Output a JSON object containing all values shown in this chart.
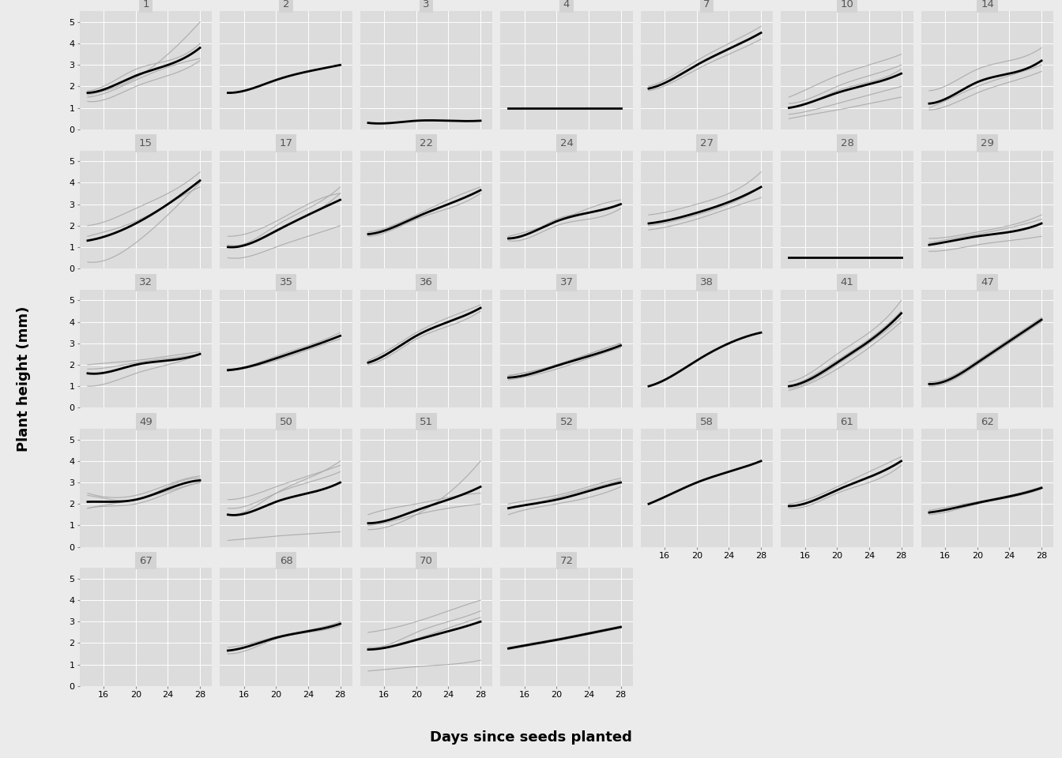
{
  "pots": [
    1,
    2,
    3,
    4,
    7,
    10,
    14,
    15,
    17,
    22,
    24,
    27,
    28,
    29,
    32,
    35,
    36,
    37,
    38,
    41,
    47,
    49,
    50,
    51,
    52,
    58,
    61,
    62,
    67,
    68,
    70,
    72
  ],
  "nrows": 5,
  "ncols": 7,
  "days": [
    14,
    17,
    20,
    24,
    28
  ],
  "x_ticks": [
    16,
    20,
    24,
    28
  ],
  "ylim": [
    0,
    5.5
  ],
  "yticks": [
    0,
    1,
    2,
    3,
    4,
    5
  ],
  "xlim": [
    13,
    29.5
  ],
  "background_color": "#EBEBEB",
  "panel_bg": "#DCDCDC",
  "strip_bg": "#D3D3D3",
  "grid_color": "#FFFFFF",
  "loess_color": "black",
  "line_color": "#AAAAAA",
  "strip_text_color": "#555555",
  "xlabel": "Days since seeds planted",
  "ylabel": "Plant height (mm)",
  "pot_data": {
    "1": {
      "plants": [
        [
          1.8,
          2.2,
          2.8,
          3.2,
          4.0
        ],
        [
          1.5,
          1.8,
          2.3,
          2.9,
          3.3
        ],
        [
          1.7,
          2.0,
          2.5,
          3.0,
          3.8
        ],
        [
          1.6,
          1.9,
          2.4,
          3.5,
          5.0
        ],
        [
          1.3,
          1.5,
          2.0,
          2.5,
          3.2
        ]
      ],
      "loess": [
        1.7,
        2.0,
        2.5,
        3.0,
        3.8
      ]
    },
    "2": {
      "plants": [
        [
          1.7,
          1.9,
          2.3,
          2.7,
          3.0
        ]
      ],
      "loess": [
        1.7,
        1.9,
        2.3,
        2.7,
        3.0
      ]
    },
    "3": {
      "plants": [
        [
          0.3,
          0.3,
          0.4,
          0.4,
          0.4
        ]
      ],
      "loess": [
        0.3,
        0.3,
        0.4,
        0.4,
        0.4
      ]
    },
    "4": {
      "plants": [
        [
          1.0,
          1.0,
          1.0,
          1.0,
          1.0
        ]
      ],
      "loess": [
        1.0,
        1.0,
        1.0,
        1.0,
        1.0
      ]
    },
    "7": {
      "plants": [
        [
          2.0,
          2.5,
          3.2,
          4.0,
          4.8
        ],
        [
          1.8,
          2.2,
          2.8,
          3.5,
          4.2
        ]
      ],
      "loess": [
        1.9,
        2.35,
        3.0,
        3.75,
        4.5
      ]
    },
    "10": {
      "plants": [
        [
          1.5,
          2.0,
          2.5,
          3.0,
          3.5
        ],
        [
          1.2,
          1.5,
          2.0,
          2.5,
          3.0
        ],
        [
          1.0,
          1.3,
          1.8,
          2.2,
          2.8
        ],
        [
          0.7,
          0.9,
          1.2,
          1.6,
          2.0
        ],
        [
          0.5,
          0.7,
          0.9,
          1.2,
          1.5
        ]
      ],
      "loess": [
        1.0,
        1.3,
        1.7,
        2.1,
        2.6
      ]
    },
    "14": {
      "plants": [
        [
          1.0,
          1.5,
          2.0,
          2.5,
          3.0
        ],
        [
          0.9,
          1.2,
          1.7,
          2.2,
          2.7
        ],
        [
          1.8,
          2.2,
          2.8,
          3.2,
          3.8
        ]
      ],
      "loess": [
        1.2,
        1.6,
        2.2,
        2.6,
        3.2
      ]
    },
    "15": {
      "plants": [
        [
          0.3,
          0.5,
          1.2,
          2.5,
          4.0
        ],
        [
          1.5,
          1.8,
          2.2,
          3.0,
          3.8
        ],
        [
          2.0,
          2.3,
          2.8,
          3.5,
          4.5
        ]
      ],
      "loess": [
        1.3,
        1.6,
        2.1,
        3.0,
        4.1
      ]
    },
    "17": {
      "plants": [
        [
          1.0,
          1.2,
          1.8,
          2.5,
          3.5
        ],
        [
          1.1,
          1.3,
          2.0,
          2.8,
          3.8
        ],
        [
          1.5,
          1.7,
          2.2,
          3.0,
          3.5
        ],
        [
          0.5,
          0.6,
          1.0,
          1.5,
          2.0
        ]
      ],
      "loess": [
        1.0,
        1.2,
        1.75,
        2.5,
        3.2
      ]
    },
    "22": {
      "plants": [
        [
          1.7,
          2.0,
          2.5,
          3.2,
          3.8
        ],
        [
          1.5,
          1.8,
          2.3,
          2.8,
          3.5
        ]
      ],
      "loess": [
        1.6,
        1.9,
        2.4,
        3.0,
        3.65
      ]
    },
    "24": {
      "plants": [
        [
          1.5,
          1.8,
          2.2,
          2.8,
          3.2
        ],
        [
          1.4,
          1.7,
          2.3,
          2.6,
          3.0
        ],
        [
          1.3,
          1.5,
          2.0,
          2.3,
          2.8
        ]
      ],
      "loess": [
        1.4,
        1.7,
        2.2,
        2.6,
        3.0
      ]
    },
    "27": {
      "plants": [
        [
          2.0,
          2.2,
          2.5,
          3.0,
          3.8
        ],
        [
          1.8,
          2.0,
          2.3,
          2.8,
          3.3
        ],
        [
          2.5,
          2.7,
          3.0,
          3.5,
          4.5
        ]
      ],
      "loess": [
        2.1,
        2.3,
        2.6,
        3.1,
        3.8
      ]
    },
    "28": {
      "plants": [
        [
          0.5,
          0.5,
          0.5,
          0.5,
          0.5
        ]
      ],
      "loess": [
        0.5,
        0.5,
        0.5,
        0.5,
        0.5
      ]
    },
    "29": {
      "plants": [
        [
          1.2,
          1.4,
          1.6,
          1.9,
          2.3
        ],
        [
          1.4,
          1.5,
          1.7,
          2.0,
          2.5
        ],
        [
          0.8,
          0.9,
          1.1,
          1.3,
          1.5
        ]
      ],
      "loess": [
        1.1,
        1.3,
        1.5,
        1.7,
        2.1
      ]
    },
    "32": {
      "plants": [
        [
          2.0,
          2.1,
          2.2,
          2.4,
          2.6
        ],
        [
          1.8,
          1.9,
          2.1,
          2.3,
          2.5
        ],
        [
          1.0,
          1.2,
          1.6,
          2.0,
          2.5
        ]
      ],
      "loess": [
        1.6,
        1.7,
        2.0,
        2.2,
        2.5
      ]
    },
    "35": {
      "plants": [
        [
          1.7,
          1.9,
          2.2,
          2.7,
          3.2
        ],
        [
          1.8,
          2.0,
          2.4,
          2.9,
          3.5
        ]
      ],
      "loess": [
        1.75,
        1.95,
        2.3,
        2.8,
        3.35
      ]
    },
    "36": {
      "plants": [
        [
          2.0,
          2.5,
          3.2,
          3.8,
          4.5
        ],
        [
          2.2,
          2.8,
          3.5,
          4.2,
          4.8
        ]
      ],
      "loess": [
        2.1,
        2.65,
        3.35,
        4.0,
        4.65
      ]
    },
    "37": {
      "plants": [
        [
          1.5,
          1.7,
          2.0,
          2.5,
          3.0
        ],
        [
          1.3,
          1.5,
          1.8,
          2.3,
          2.8
        ],
        [
          1.5,
          1.7,
          2.0,
          2.5,
          3.0
        ],
        [
          1.4,
          1.6,
          2.0,
          2.4,
          2.9
        ]
      ],
      "loess": [
        1.4,
        1.6,
        1.95,
        2.4,
        2.9
      ]
    },
    "38": {
      "plants": [
        [
          1.0,
          1.5,
          2.2,
          3.0,
          3.5
        ]
      ],
      "loess": [
        1.0,
        1.5,
        2.2,
        3.0,
        3.5
      ]
    },
    "41": {
      "plants": [
        [
          0.8,
          1.2,
          1.8,
          2.8,
          4.0
        ],
        [
          1.0,
          1.5,
          2.2,
          3.2,
          4.5
        ],
        [
          1.2,
          1.7,
          2.5,
          3.5,
          5.0
        ],
        [
          0.9,
          1.3,
          2.0,
          3.0,
          4.2
        ]
      ],
      "loess": [
        1.0,
        1.4,
        2.1,
        3.1,
        4.4
      ]
    },
    "47": {
      "plants": [
        [
          1.0,
          1.3,
          2.0,
          3.0,
          4.0
        ],
        [
          1.2,
          1.5,
          2.2,
          3.2,
          4.2
        ]
      ],
      "loess": [
        1.1,
        1.4,
        2.1,
        3.1,
        4.1
      ]
    },
    "49": {
      "plants": [
        [
          2.4,
          2.2,
          2.2,
          2.8,
          3.2
        ],
        [
          1.8,
          1.9,
          2.0,
          2.5,
          3.0
        ],
        [
          2.5,
          2.3,
          2.4,
          2.9,
          3.3
        ],
        [
          1.8,
          2.0,
          2.2,
          2.6,
          3.0
        ]
      ],
      "loess": [
        2.1,
        2.1,
        2.2,
        2.7,
        3.1
      ]
    },
    "50": {
      "plants": [
        [
          1.5,
          1.8,
          2.5,
          3.2,
          4.0
        ],
        [
          1.8,
          2.0,
          2.5,
          3.0,
          3.5
        ],
        [
          2.2,
          2.4,
          2.8,
          3.3,
          3.8
        ],
        [
          0.3,
          0.4,
          0.5,
          0.6,
          0.7
        ]
      ],
      "loess": [
        1.5,
        1.65,
        2.1,
        2.5,
        3.0
      ]
    },
    "51": {
      "plants": [
        [
          1.5,
          1.8,
          2.0,
          2.3,
          2.5
        ],
        [
          1.0,
          1.2,
          1.5,
          1.8,
          2.0
        ],
        [
          0.8,
          1.0,
          1.5,
          2.5,
          4.0
        ]
      ],
      "loess": [
        1.1,
        1.3,
        1.7,
        2.2,
        2.8
      ]
    },
    "52": {
      "plants": [
        [
          2.0,
          2.2,
          2.4,
          2.8,
          3.2
        ],
        [
          1.8,
          2.0,
          2.2,
          2.6,
          3.0
        ],
        [
          1.5,
          1.8,
          2.0,
          2.3,
          2.8
        ],
        [
          1.8,
          2.0,
          2.3,
          2.7,
          3.1
        ]
      ],
      "loess": [
        1.8,
        2.0,
        2.2,
        2.6,
        3.0
      ]
    },
    "58": {
      "plants": [
        [
          2.0,
          2.5,
          3.0,
          3.5,
          4.0
        ]
      ],
      "loess": [
        2.0,
        2.5,
        3.0,
        3.5,
        4.0
      ]
    },
    "61": {
      "plants": [
        [
          2.0,
          2.3,
          2.8,
          3.5,
          4.2
        ],
        [
          1.8,
          2.0,
          2.5,
          3.0,
          3.8
        ]
      ],
      "loess": [
        1.9,
        2.15,
        2.65,
        3.25,
        4.0
      ]
    },
    "62": {
      "plants": [
        [
          1.7,
          1.9,
          2.1,
          2.4,
          2.8
        ],
        [
          1.5,
          1.7,
          2.0,
          2.3,
          2.7
        ]
      ],
      "loess": [
        1.6,
        1.8,
        2.05,
        2.35,
        2.75
      ]
    },
    "67": {
      "plants": [],
      "loess": []
    },
    "68": {
      "plants": [
        [
          1.5,
          1.75,
          2.2,
          2.5,
          2.8
        ],
        [
          1.8,
          2.0,
          2.3,
          2.6,
          3.0
        ]
      ],
      "loess": [
        1.65,
        1.9,
        2.25,
        2.55,
        2.9
      ]
    },
    "70": {
      "plants": [
        [
          2.5,
          2.7,
          3.0,
          3.5,
          4.0
        ],
        [
          1.8,
          2.0,
          2.5,
          3.0,
          3.5
        ],
        [
          1.7,
          1.9,
          2.2,
          2.7,
          3.2
        ],
        [
          0.7,
          0.8,
          0.9,
          1.0,
          1.2
        ]
      ],
      "loess": [
        1.7,
        1.85,
        2.15,
        2.55,
        3.0
      ]
    },
    "72": {
      "plants": [
        [
          1.8,
          2.0,
          2.2,
          2.5,
          2.8
        ],
        [
          1.7,
          1.9,
          2.1,
          2.4,
          2.7
        ]
      ],
      "loess": [
        1.75,
        1.95,
        2.15,
        2.45,
        2.75
      ]
    }
  }
}
